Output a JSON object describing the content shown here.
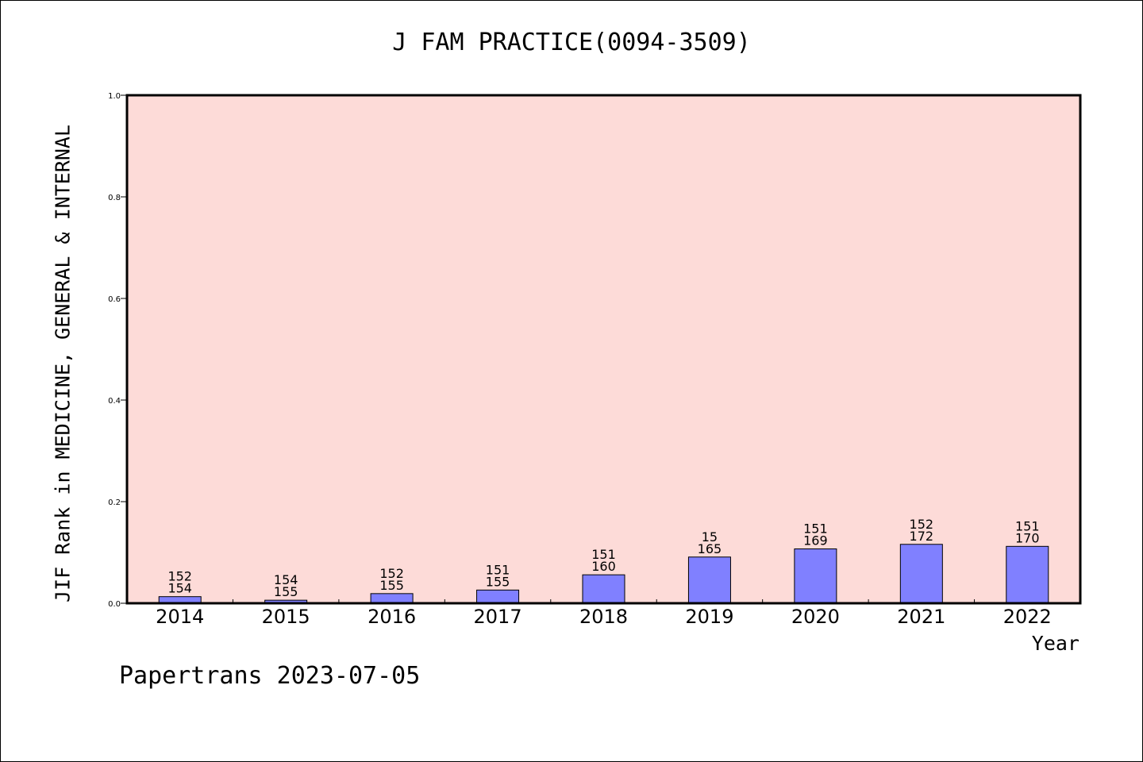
{
  "chart_data": {
    "type": "bar",
    "title": "J FAM PRACTICE(0094-3509)",
    "ylabel": "JIF Rank in MEDICINE, GENERAL & INTERNAL",
    "xlabel": "Year",
    "ylim": [
      0,
      1.0
    ],
    "yticks": [
      "0.0",
      "0.2",
      "0.4",
      "0.6",
      "0.8",
      "1.0"
    ],
    "categories": [
      "2014",
      "2015",
      "2016",
      "2017",
      "2018",
      "2019",
      "2020",
      "2021",
      "2022"
    ],
    "values": [
      0.013,
      0.006,
      0.019,
      0.026,
      0.056,
      0.091,
      0.107,
      0.116,
      0.112
    ],
    "labels_top": [
      "152",
      "154",
      "152",
      "151",
      "151",
      "15",
      "151",
      "152",
      "151"
    ],
    "labels_bottom": [
      "154",
      "155",
      "155",
      "155",
      "160",
      "165",
      "169",
      "172",
      "170"
    ],
    "colors": {
      "plot_bg": "#fddbd8",
      "bar": "#8080ff",
      "bar_edge": "#000000"
    },
    "grid": false,
    "legend": "none"
  },
  "footer": "Papertrans 2023-07-05"
}
